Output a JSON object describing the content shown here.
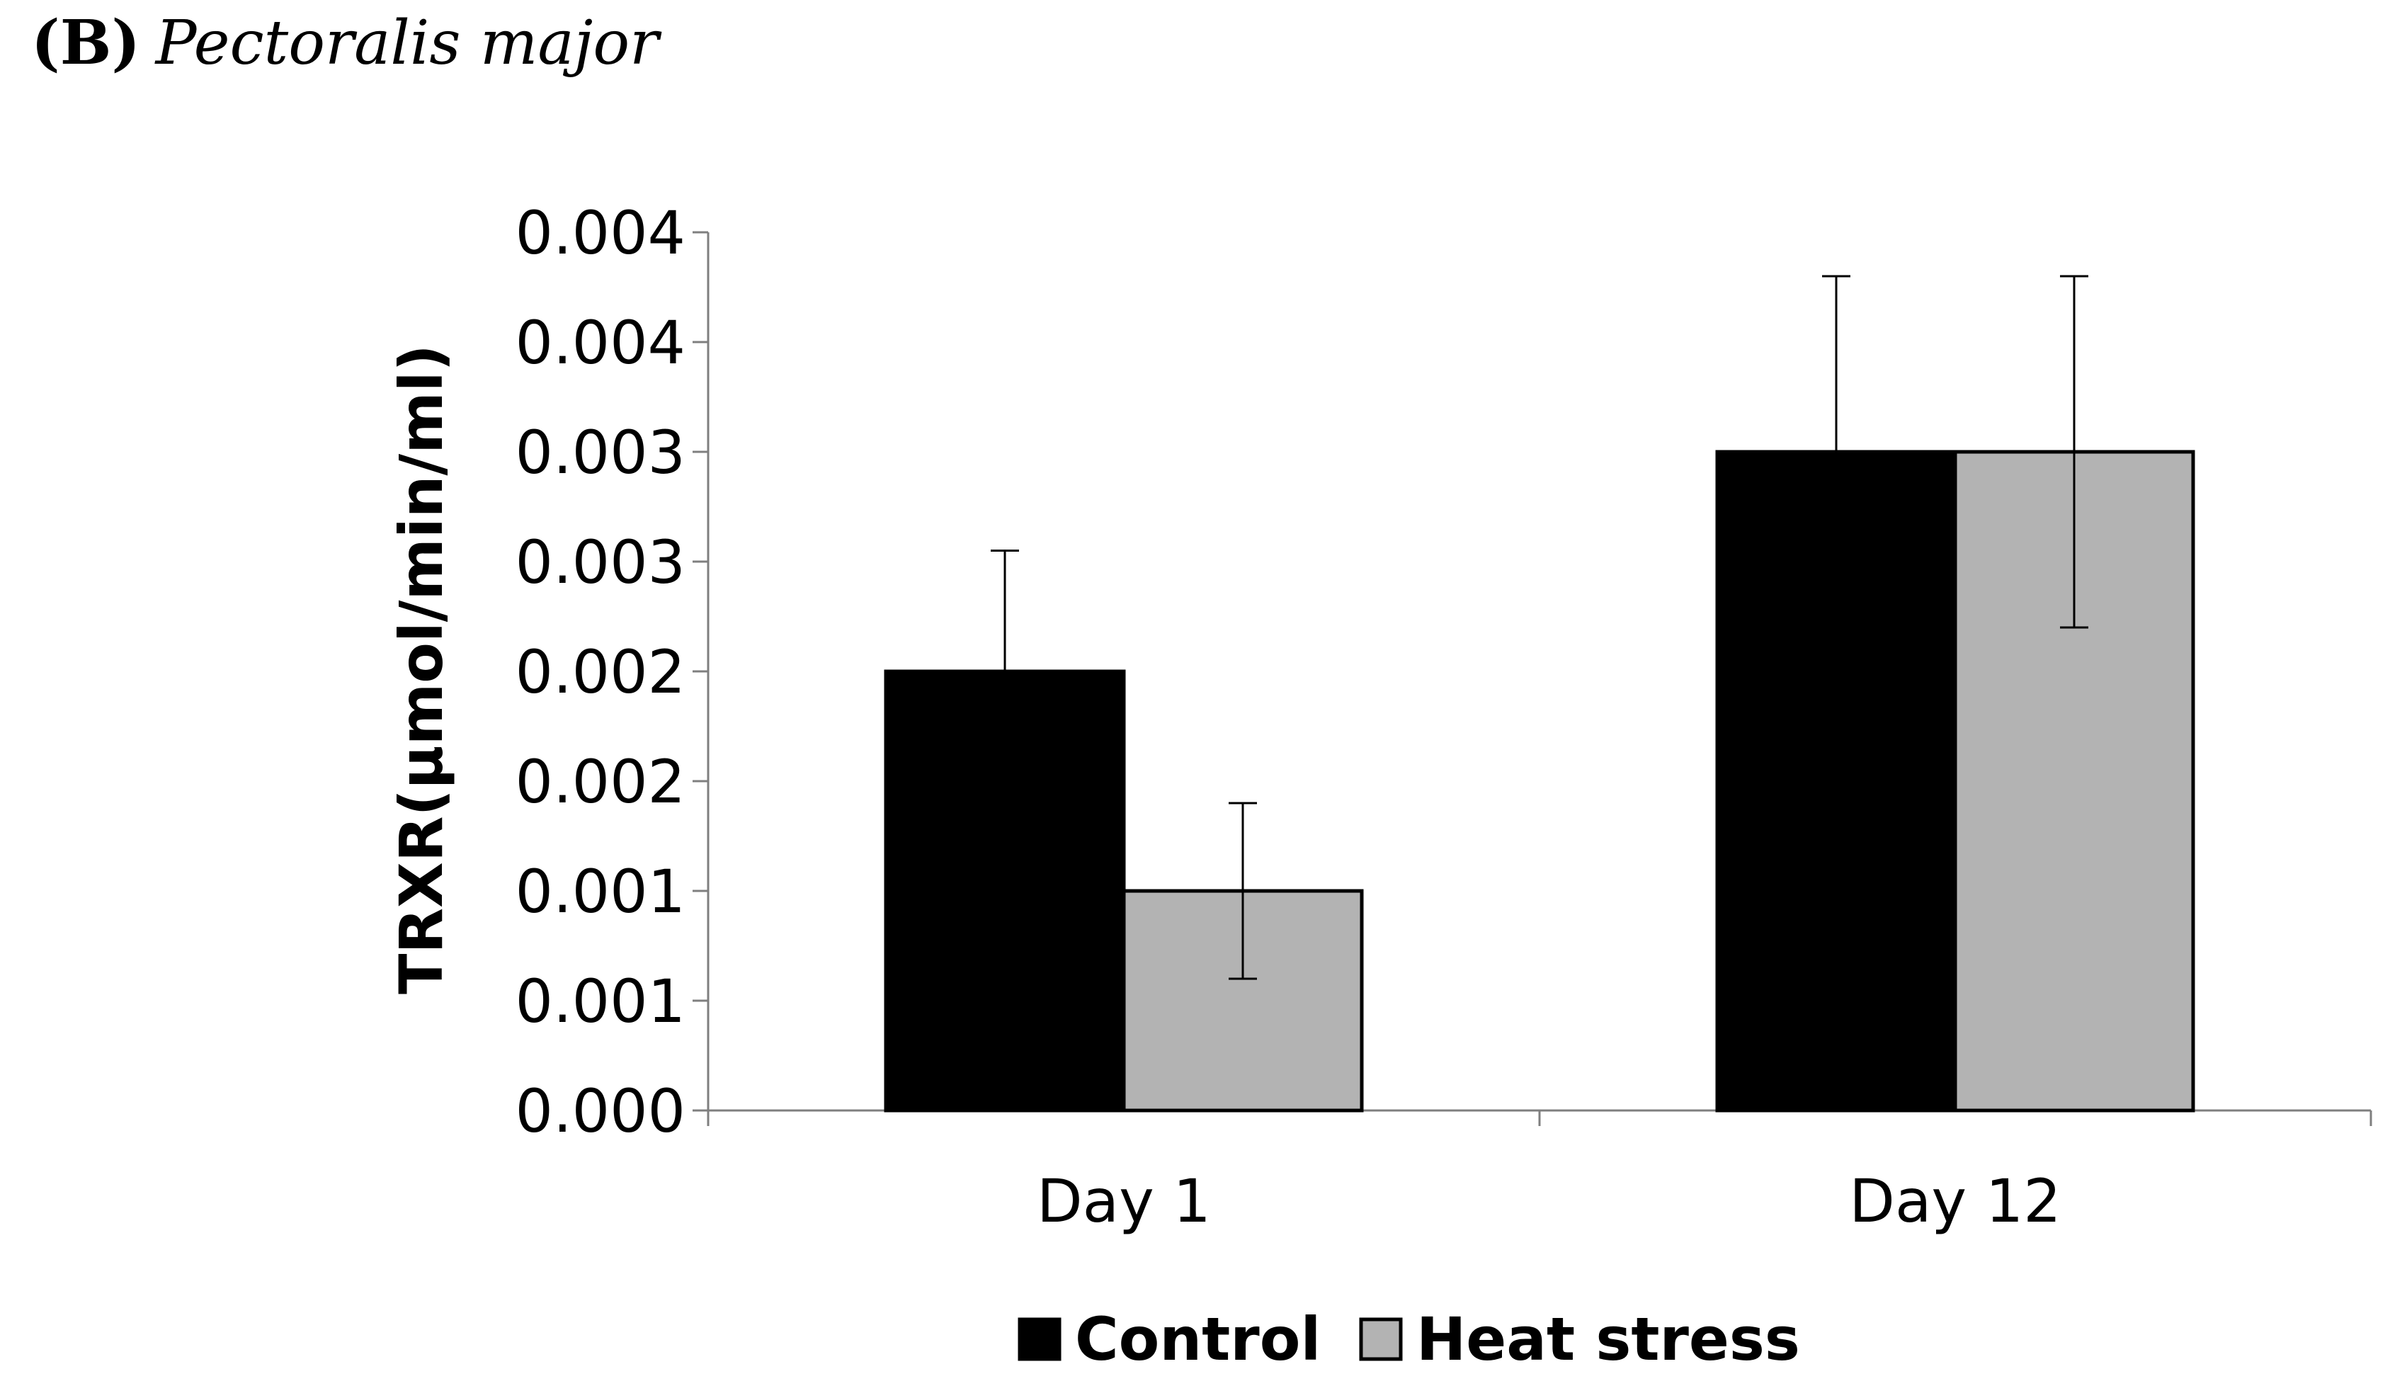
{
  "figure": {
    "panel_label": "(B)",
    "panel_title": "Pectoralis major"
  },
  "chart_data": {
    "type": "bar",
    "title": "Pectoralis major",
    "xlabel": "",
    "ylabel": "TRXR(µmol/min/ml)",
    "categories": [
      "Day 1",
      "Day 12"
    ],
    "yticks": [
      0.0,
      0.0005,
      0.001,
      0.0015,
      0.002,
      0.0025,
      0.003,
      0.0035,
      0.004
    ],
    "ytick_labels": [
      "0.000",
      "0.001",
      "0.001",
      "0.002",
      "0.002",
      "0.003",
      "0.003",
      "0.004",
      "0.004"
    ],
    "ylim": [
      0,
      0.004
    ],
    "grid": false,
    "legend": "bottom",
    "series": [
      {
        "name": "Control",
        "values": [
          0.002,
          0.003
        ],
        "error": [
          0.00055,
          0.0008
        ],
        "color": "#000000"
      },
      {
        "name": "Heat stress",
        "values": [
          0.001,
          0.003
        ],
        "error": [
          0.0004,
          0.0008
        ],
        "color": "#b3b3b3"
      }
    ]
  }
}
